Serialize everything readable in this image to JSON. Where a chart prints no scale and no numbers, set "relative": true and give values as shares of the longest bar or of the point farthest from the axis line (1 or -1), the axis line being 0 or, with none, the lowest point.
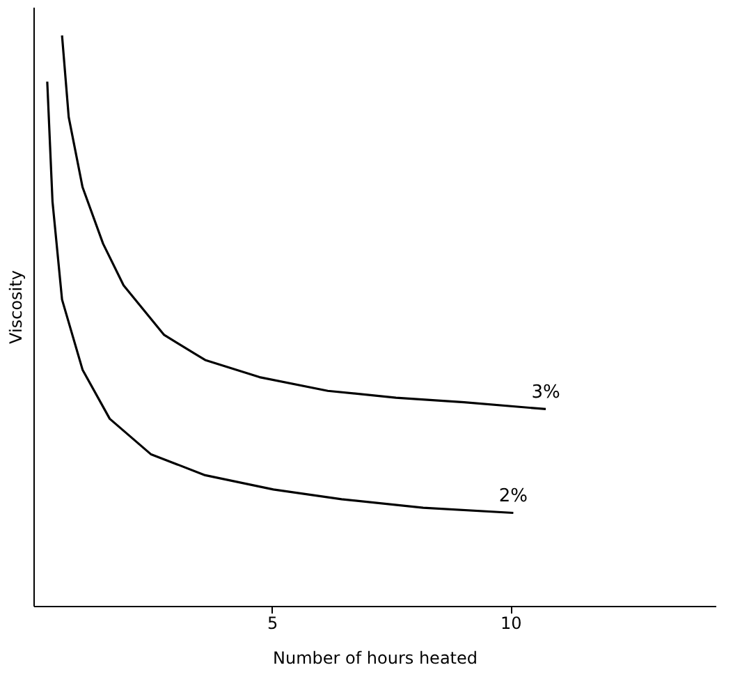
{
  "chart_data": {
    "type": "line",
    "relative": true,
    "xlabel": "Number of hours heated",
    "ylabel": "Viscosity",
    "xlim": [
      0,
      14.3
    ],
    "xticks": [
      5,
      10
    ],
    "grid": false,
    "marker": "none",
    "line_style": "solid",
    "series": [
      {
        "name": "3%",
        "color": "#000000",
        "x": [
          0.6,
          0.74,
          1.03,
          1.46,
          1.89,
          2.74,
          3.6,
          4.74,
          6.17,
          7.6,
          9.03,
          10.74
        ],
        "values": [
          1.0,
          0.857,
          0.734,
          0.635,
          0.562,
          0.475,
          0.431,
          0.401,
          0.377,
          0.365,
          0.357,
          0.345
        ]
      },
      {
        "name": "2%",
        "color": "#000000",
        "x": [
          0.29,
          0.4,
          0.6,
          1.03,
          1.6,
          2.46,
          3.6,
          5.03,
          6.46,
          8.17,
          10.06
        ],
        "values": [
          0.919,
          0.709,
          0.537,
          0.414,
          0.328,
          0.266,
          0.229,
          0.204,
          0.187,
          0.172,
          0.163
        ]
      }
    ]
  }
}
